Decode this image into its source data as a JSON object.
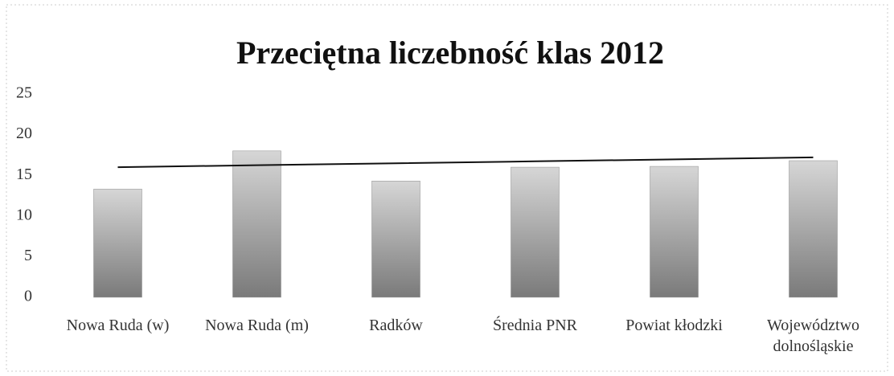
{
  "chart_data": {
    "type": "bar",
    "title": "Przeciętna liczebność klas 2012",
    "categories": [
      "Nowa Ruda (w)",
      "Nowa Ruda (m)",
      "Radków",
      "Średnia PNR",
      "Powiat kłodzki",
      "Województwo dolnośląskie"
    ],
    "series": [
      {
        "type": "bar",
        "color": "#8c8c8c",
        "values": [
          13.3,
          18,
          14.3,
          16,
          16.1,
          16.8
        ]
      },
      {
        "type": "line",
        "color": "#111111",
        "values": [
          16.0,
          16.24,
          16.48,
          16.72,
          16.96,
          17.2
        ]
      }
    ],
    "ylim": [
      0,
      25
    ],
    "yticks": [
      0,
      5,
      10,
      15,
      20,
      25
    ],
    "grid": false
  }
}
